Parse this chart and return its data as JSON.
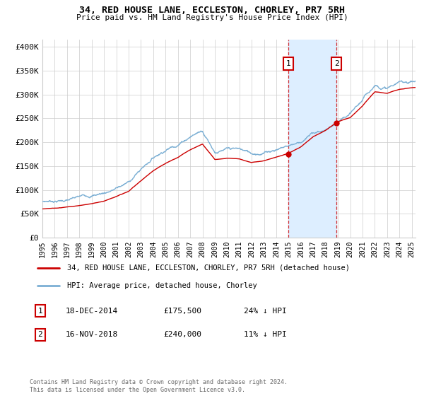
{
  "title": "34, RED HOUSE LANE, ECCLESTON, CHORLEY, PR7 5RH",
  "subtitle": "Price paid vs. HM Land Registry's House Price Index (HPI)",
  "ylabel_ticks": [
    "£0",
    "£50K",
    "£100K",
    "£150K",
    "£200K",
    "£250K",
    "£300K",
    "£350K",
    "£400K"
  ],
  "ytick_values": [
    0,
    50000,
    100000,
    150000,
    200000,
    250000,
    300000,
    350000,
    400000
  ],
  "ylim": [
    0,
    415000
  ],
  "xlim_start": 1995.0,
  "xlim_end": 2025.3,
  "transaction1_date": 2014.96,
  "transaction1_price": 175500,
  "transaction2_date": 2018.88,
  "transaction2_price": 240000,
  "line_color_red": "#cc0000",
  "line_color_blue": "#7bafd4",
  "shade_color": "#ddeeff",
  "grid_color": "#cccccc",
  "background_color": "#ffffff",
  "legend_line1": "34, RED HOUSE LANE, ECCLESTON, CHORLEY, PR7 5RH (detached house)",
  "legend_line2": "HPI: Average price, detached house, Chorley",
  "row1_label": "1",
  "row1_date": "18-DEC-2014",
  "row1_price": "£175,500",
  "row1_pct": "24% ↓ HPI",
  "row2_label": "2",
  "row2_date": "16-NOV-2018",
  "row2_price": "£240,000",
  "row2_pct": "11% ↓ HPI",
  "footnote": "Contains HM Land Registry data © Crown copyright and database right 2024.\nThis data is licensed under the Open Government Licence v3.0."
}
